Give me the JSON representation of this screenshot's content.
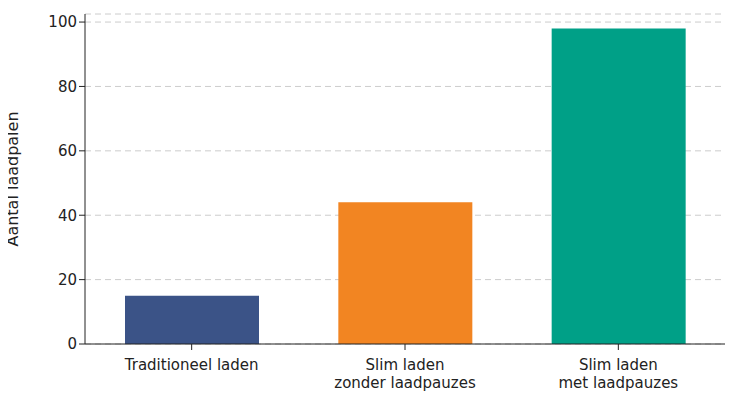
{
  "chart_data": {
    "type": "bar",
    "categories": [
      "Traditioneel laden",
      "Slim laden\nzonder laadpauzes",
      "Slim laden\nmet laadpauzes"
    ],
    "values": [
      15,
      44,
      98
    ],
    "colors": [
      "#3b5387",
      "#f28522",
      "#00a087"
    ],
    "y_label": "Aantal laadpalen",
    "ylim": [
      0,
      102.5
    ],
    "yticks": [
      0,
      20,
      40,
      60,
      80,
      100
    ],
    "grid": true
  }
}
